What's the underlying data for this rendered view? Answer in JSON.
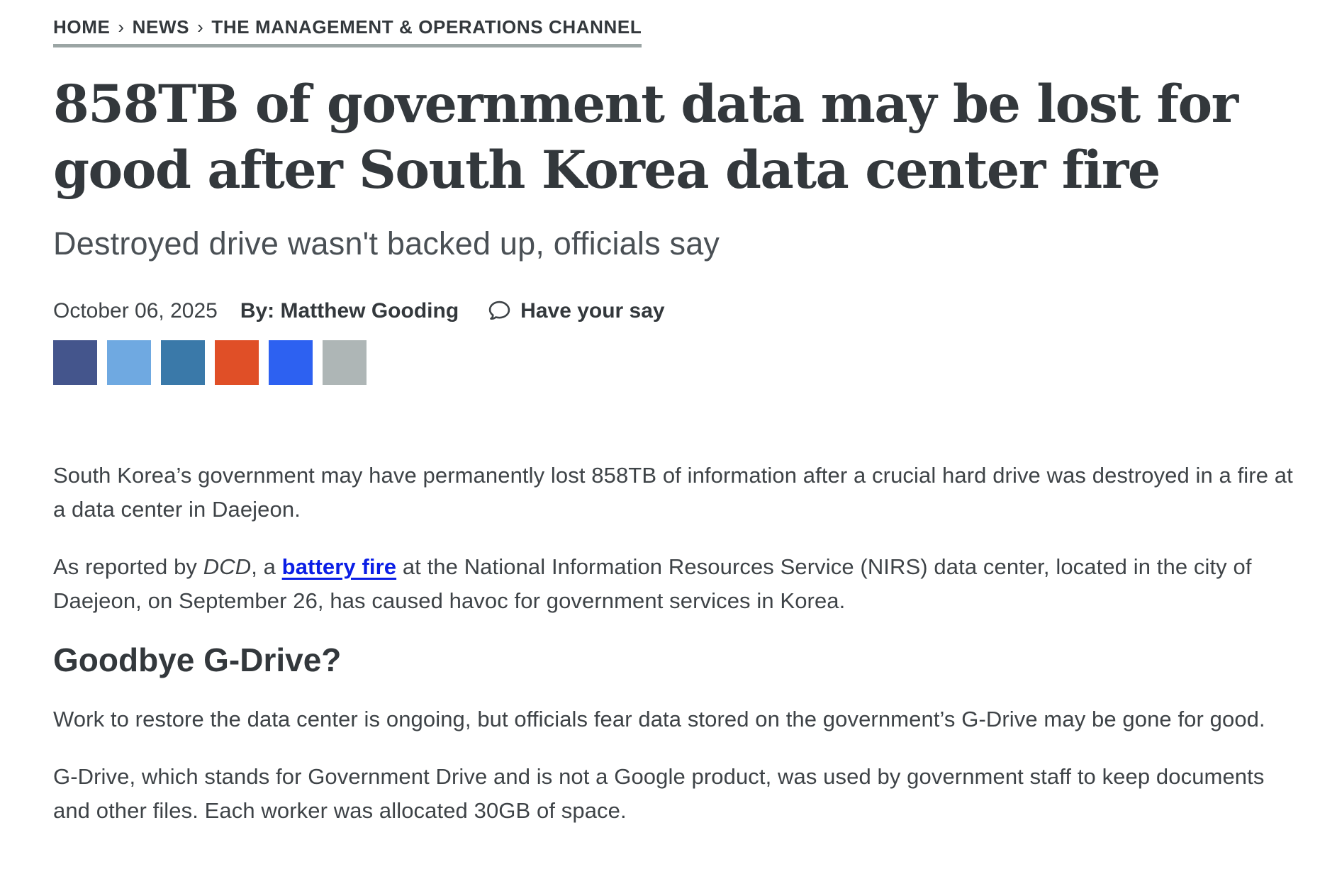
{
  "breadcrumb": {
    "separator": "›",
    "items": [
      {
        "label": "HOME"
      },
      {
        "label": "NEWS"
      },
      {
        "label": "THE MANAGEMENT & OPERATIONS CHANNEL"
      }
    ]
  },
  "article": {
    "title": "858TB of government data may be lost for good after South Korea data center fire",
    "title_lines": [
      "858TB of government data may be lost for",
      "good after South Korea data center fire"
    ],
    "subtitle": "Destroyed drive wasn't backed up, officials say",
    "date": "October 06, 2025",
    "byline_prefix": "By:",
    "author": "Matthew Gooding",
    "have_your_say": "Have your say"
  },
  "share": {
    "buttons": [
      {
        "name": "share-button-1",
        "color": "#44558C"
      },
      {
        "name": "share-button-2",
        "color": "#6FA9E1"
      },
      {
        "name": "share-button-3",
        "color": "#3A79A9"
      },
      {
        "name": "share-button-4",
        "color": "#E04F27"
      },
      {
        "name": "share-button-5",
        "color": "#2D61F1"
      },
      {
        "name": "share-button-6",
        "color": "#AEB6B6"
      }
    ]
  },
  "body": {
    "p1": "South Korea’s government may have permanently lost 858TB of information after a crucial hard drive was destroyed in a fire at a data center in Daejeon.",
    "p2": {
      "seg1": "As reported by ",
      "publication": "DCD",
      "seg2": ", a ",
      "link_text": "battery fire",
      "seg3": " at the National Information Resources Service (NIRS) data center, located in the city of Daejeon, on September 26, has caused havoc for government services in Korea."
    },
    "heading2": "Goodbye G-Drive?",
    "p3": "Work to restore the data center is ongoing, but officials fear data stored on the government’s G-Drive may be gone for good.",
    "p4": "G-Drive, which stands for Government Drive and is not a Google product, was used by government staff to keep documents and other files. Each worker was allocated 30GB of space."
  },
  "colors": {
    "text_dark": "#33383C",
    "text_body": "#3E4347",
    "subtitle_gray": "#4A5055",
    "link_blue": "#0A1EE6",
    "breadcrumb_underline": "#9BA5A4"
  }
}
